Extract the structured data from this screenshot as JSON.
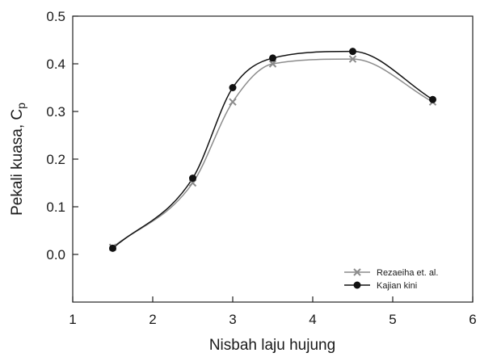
{
  "chart_data": {
    "type": "line",
    "xlabel": "Nisbah laju hujung",
    "ylabel_main": "Pekali kuasa, C",
    "ylabel_sub": "p",
    "xlim": [
      1,
      6
    ],
    "ylim": [
      -0.1,
      0.5
    ],
    "x_ticks": [
      "1",
      "2",
      "3",
      "4",
      "5",
      "6"
    ],
    "y_ticks": [
      "0.0",
      "0.1",
      "0.2",
      "0.3",
      "0.4",
      "0.5"
    ],
    "grid": false,
    "legend_position": "bottom-right",
    "colors": {
      "series1": "#8c8c8c",
      "series2": "#111111"
    },
    "series": [
      {
        "name": "Rezaeiha et. al.",
        "marker": "x",
        "x": [
          1.5,
          2.5,
          3.0,
          3.5,
          4.5,
          5.5
        ],
        "y": [
          0.015,
          0.15,
          0.32,
          0.4,
          0.41,
          0.32
        ]
      },
      {
        "name": "Kajian kini",
        "marker": "circle",
        "x": [
          1.5,
          2.5,
          3.0,
          3.5,
          4.5,
          5.5
        ],
        "y": [
          0.013,
          0.16,
          0.35,
          0.412,
          0.426,
          0.325
        ]
      }
    ]
  }
}
